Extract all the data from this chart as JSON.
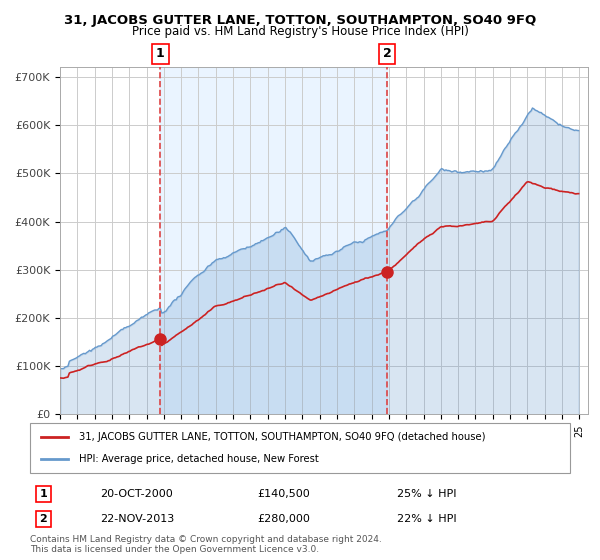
{
  "title": "31, JACOBS GUTTER LANE, TOTTON, SOUTHAMPTON, SO40 9FQ",
  "subtitle": "Price paid vs. HM Land Registry's House Price Index (HPI)",
  "legend_line1": "31, JACOBS GUTTER LANE, TOTTON, SOUTHAMPTON, SO40 9FQ (detached house)",
  "legend_line2": "HPI: Average price, detached house, New Forest",
  "sale1_label": "1",
  "sale1_date": "20-OCT-2000",
  "sale1_price": "£140,500",
  "sale1_hpi": "25% ↓ HPI",
  "sale2_label": "2",
  "sale2_date": "22-NOV-2013",
  "sale2_price": "£280,000",
  "sale2_hpi": "22% ↓ HPI",
  "footer": "Contains HM Land Registry data © Crown copyright and database right 2024.\nThis data is licensed under the Open Government Licence v3.0.",
  "hpi_color": "#a8c8e8",
  "hpi_line_color": "#6699cc",
  "price_color": "#cc2222",
  "bg_shade_color": "#ddeeff",
  "marker_color": "#cc2222",
  "vline_color": "#dd4444",
  "grid_color": "#cccccc",
  "ylabel_color": "#444444",
  "sale1_x": 2000.8,
  "sale2_x": 2013.9
}
